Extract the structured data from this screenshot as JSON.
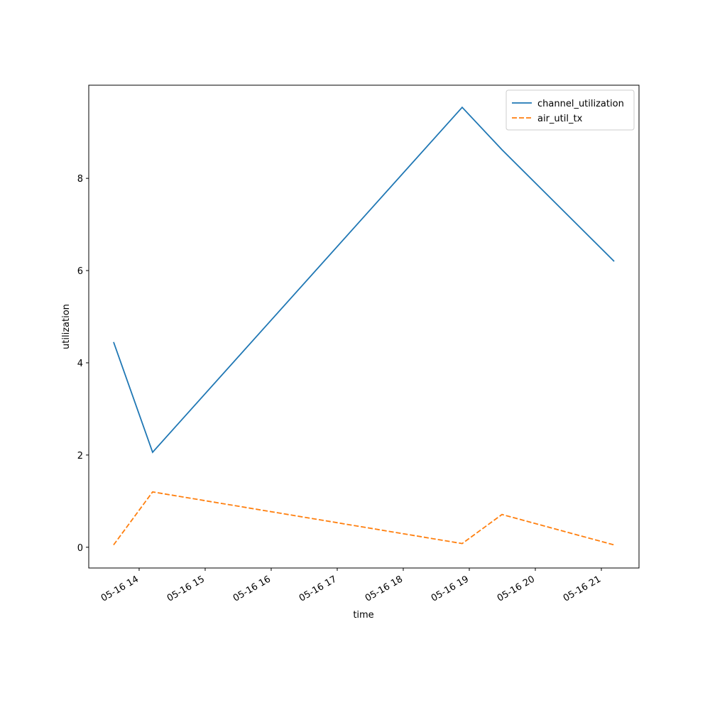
{
  "chart_data": {
    "type": "line",
    "x_label": "time",
    "y_label": "utilization",
    "x": [
      13.613,
      14.204,
      18.892,
      19.495,
      21.194
    ],
    "series": [
      {
        "name": "channel_utilization",
        "color": "#1f77b4",
        "dash": "solid",
        "values": [
          4.45,
          2.06,
          9.54,
          8.62,
          6.2
        ]
      },
      {
        "name": "air_util_tx",
        "color": "#ff7f0e",
        "dash": "dashed",
        "values": [
          0.05,
          1.2,
          0.08,
          0.71,
          0.05
        ]
      }
    ],
    "xlim": [
      13.237,
      21.57
    ],
    "xticks": [
      {
        "value": 14,
        "label": "05-16 14"
      },
      {
        "value": 15,
        "label": "05-16 15"
      },
      {
        "value": 16,
        "label": "05-16 16"
      },
      {
        "value": 17,
        "label": "05-16 17"
      },
      {
        "value": 18,
        "label": "05-16 18"
      },
      {
        "value": 19,
        "label": "05-16 19"
      },
      {
        "value": 20,
        "label": "05-16 20"
      },
      {
        "value": 21,
        "label": "05-16 21"
      }
    ],
    "ylim": [
      -0.45,
      10.02
    ],
    "yticks": [
      0,
      2,
      4,
      6,
      8
    ],
    "legend": "upper right"
  }
}
